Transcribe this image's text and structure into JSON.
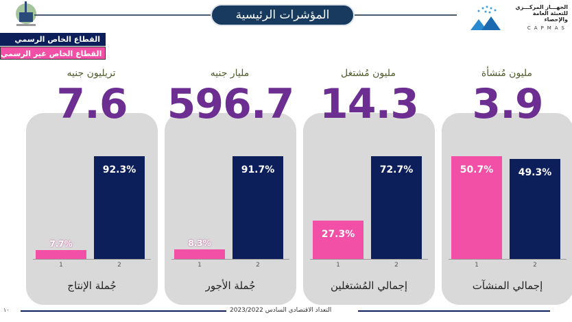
{
  "header": {
    "title": "المؤشرات الرئيسية",
    "logo_right_text": "الجهـــاز المركـــزي للتعبئة العامة والإحصاء",
    "logo_right_caption": "CAPMAS"
  },
  "legend": [
    {
      "label": "القطاع الخاص الرسمي",
      "color": "#0c1f5b"
    },
    {
      "label": "القطاع الخاص غير الرسمي",
      "color": "#f24fa6"
    }
  ],
  "cards": [
    {
      "unit": "تريليون جنيه",
      "value": "7.6",
      "title": "جُملة الإنتاج"
    },
    {
      "unit": "مليار جنيه",
      "value": "596.7",
      "title": "جُملة الأجور"
    },
    {
      "unit": "مليون مُشتغل",
      "value": "14.3",
      "title": "إجمالي المُشتغلين"
    },
    {
      "unit": "مليون مُنشأة",
      "value": "3.9",
      "title": "إجمالي المنشآت"
    }
  ],
  "chart_data": [
    {
      "type": "bar",
      "title": "جُملة الإنتاج",
      "categories": [
        "1",
        "2"
      ],
      "values": [
        7.7,
        92.3
      ],
      "labels": [
        "7.7%",
        "92.3%"
      ]
    },
    {
      "type": "bar",
      "title": "جُملة الأجور",
      "categories": [
        "1",
        "2"
      ],
      "values": [
        8.3,
        91.7
      ],
      "labels": [
        "8.3%",
        "91.7%"
      ]
    },
    {
      "type": "bar",
      "title": "إجمالي المُشتغلين",
      "categories": [
        "1",
        "2"
      ],
      "values": [
        27.3,
        72.7
      ],
      "labels": [
        "27.3%",
        "72.7%"
      ]
    },
    {
      "type": "bar",
      "title": "إجمالي المنشآت",
      "categories": [
        "1",
        "2"
      ],
      "values": [
        50.7,
        49.3
      ],
      "labels": [
        "50.7%",
        "49.3%"
      ]
    }
  ],
  "footer": {
    "text": "التعداد الاقتصادي السادس 2023/2022",
    "page": "١٠"
  }
}
